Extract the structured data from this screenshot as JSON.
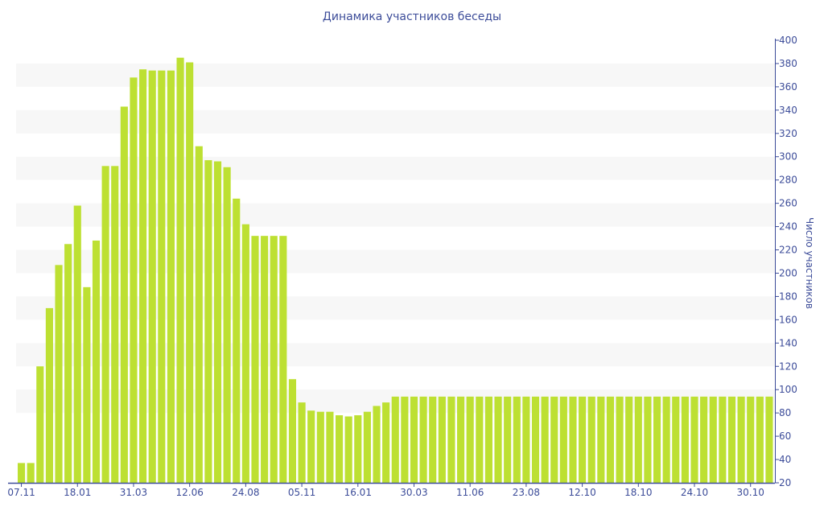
{
  "chart_data": {
    "type": "bar",
    "title": "Динамика участников беседы",
    "xlabel": "",
    "ylabel": "Число участников",
    "ylim": [
      20,
      400
    ],
    "ytick_step": 20,
    "x_tick_labels": [
      "07.11",
      "18.01",
      "31.03",
      "12.06",
      "24.08",
      "05.11",
      "16.01",
      "30.03",
      "11.06",
      "23.08",
      "12.10",
      "18.10",
      "24.10",
      "30.10"
    ],
    "x_tick_every": 6,
    "values": [
      37,
      37,
      120,
      170,
      207,
      225,
      258,
      188,
      228,
      292,
      292,
      343,
      368,
      375,
      374,
      374,
      374,
      385,
      381,
      309,
      297,
      296,
      291,
      264,
      242,
      232,
      232,
      232,
      232,
      109,
      89,
      82,
      81,
      81,
      78,
      77,
      78,
      81,
      86,
      89,
      94,
      94,
      94,
      94,
      94,
      94,
      94,
      94,
      94,
      94,
      94,
      94,
      94,
      94,
      94,
      94,
      94,
      94,
      94,
      94,
      94,
      94,
      94,
      94,
      94,
      94,
      94,
      94,
      94,
      94,
      94,
      94,
      94,
      94,
      94,
      94,
      94,
      94,
      94,
      94,
      94
    ],
    "grid": "alternating horizontal bands",
    "colors": {
      "bar": "#bde032",
      "axis": "#3c4c99",
      "band": "#f7f7f7"
    }
  }
}
